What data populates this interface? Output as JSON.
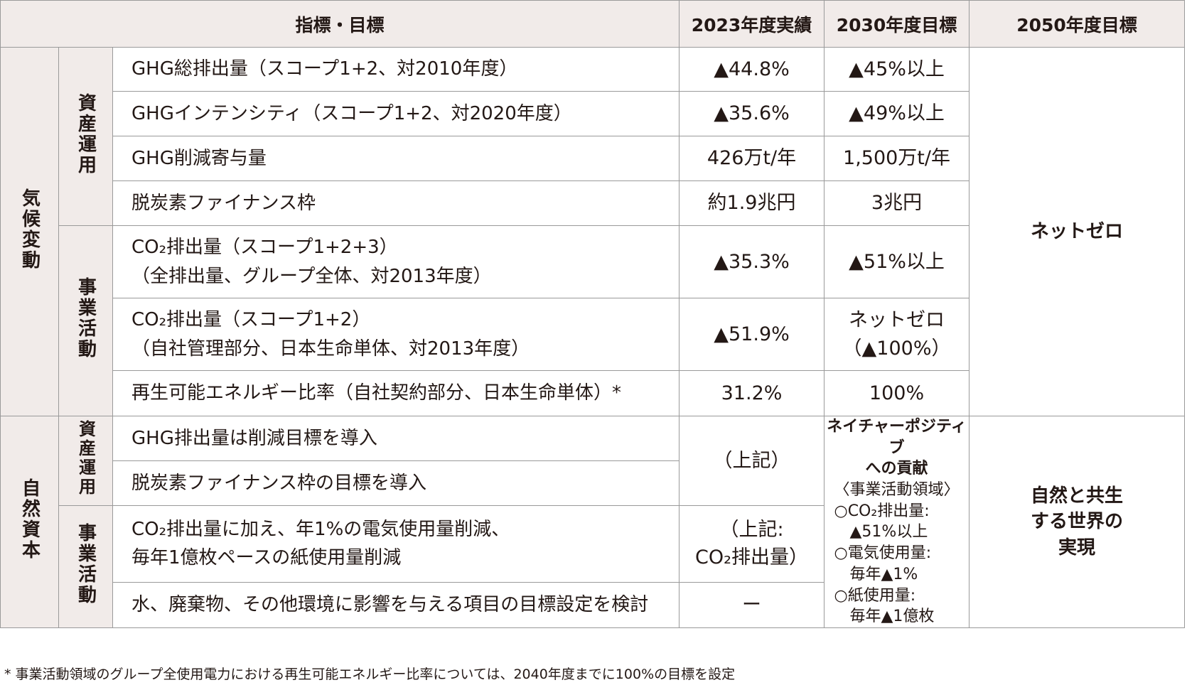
{
  "header": {
    "indicator": "指標・目標",
    "y2023": "2023年度実績",
    "y2030": "2030年度目標",
    "y2050": "2050年度目標"
  },
  "categories": {
    "climate": "気候変動",
    "nature": "自然資本",
    "asset_management": "資産運用",
    "business_activities": "事業活動"
  },
  "climate_rows": [
    {
      "indicator": "GHG総排出量（スコープ1+2、対2010年度）",
      "y2023": "▲44.8%",
      "y2030": "▲45%以上"
    },
    {
      "indicator": "GHGインテンシティ（スコープ1+2、対2020年度）",
      "y2023": "▲35.6%",
      "y2030": "▲49%以上"
    },
    {
      "indicator": "GHG削減寄与量",
      "y2023": "426万t/年",
      "y2030": "1,500万t/年"
    },
    {
      "indicator": "脱炭素ファイナンス枠",
      "y2023": "約1.9兆円",
      "y2030": "3兆円"
    },
    {
      "indicator": "CO₂排出量（スコープ1+2+3）\n（全排出量、グループ全体、対2013年度）",
      "y2023": "▲35.3%",
      "y2030": "▲51%以上"
    },
    {
      "indicator": "CO₂排出量（スコープ1+2）\n（自社管理部分、日本生命単体、対2013年度）",
      "y2023": "▲51.9%",
      "y2030": "ネットゼロ\n（▲100%）"
    },
    {
      "indicator": "再生可能エネルギー比率（自社契約部分、日本生命単体）*",
      "y2023": "31.2%",
      "y2030": "100%"
    }
  ],
  "climate_2050": "ネットゼロ",
  "nature_rows": [
    {
      "indicator": "GHG排出量は削減目標を導入"
    },
    {
      "indicator": "脱炭素ファイナンス枠の目標を導入"
    },
    {
      "indicator": "CO₂排出量に加え、年1%の電気使用量削減、\n毎年1億枚ペースの紙使用量削減"
    },
    {
      "indicator": "水、廃棄物、その他環境に影響を与える項目の目標設定を検討"
    }
  ],
  "nature_2023": {
    "asset_management": "（上記）",
    "business_activities": "（上記:\nCO₂排出量）",
    "other": "ー"
  },
  "nature_2030": {
    "title": "ネイチャーポジティブ\nへの貢献",
    "scope": "〈事業活動領域〉",
    "item1": "○CO₂排出量:",
    "item1_value": "▲51%以上",
    "item2": "○電気使用量:",
    "item2_value": "毎年▲1%",
    "item3": "○紙使用量:",
    "item3_value": "毎年▲1億枚"
  },
  "nature_2050": "自然と共生\nする世界の\n実現",
  "footnote": "* 事業活動領域のグループ全使用電力における再生可能エネルギー比率については、2040年度までに100%の目標を設定"
}
